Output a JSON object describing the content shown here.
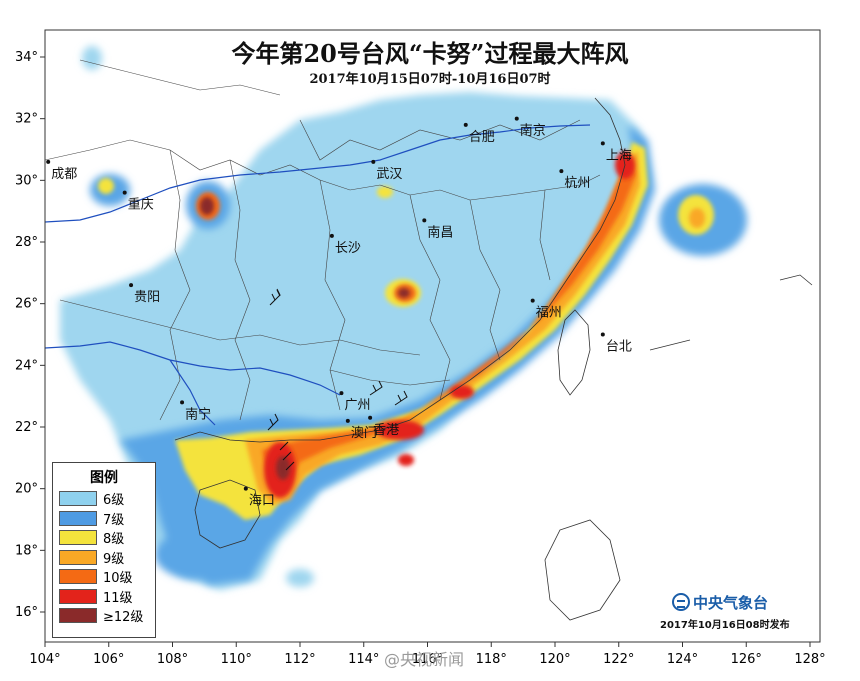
{
  "title": "今年第20号台风“卡努”过程最大阵风",
  "subtitle": "2017年10月15日07时-10月16日07时",
  "x_ticks": [
    "104°",
    "106°",
    "108°",
    "110°",
    "112°",
    "114°",
    "116°",
    "118°",
    "120°",
    "122°",
    "124°",
    "126°",
    "128°"
  ],
  "y_ticks": [
    "34°",
    "32°",
    "30°",
    "28°",
    "26°",
    "24°",
    "22°",
    "20°",
    "18°",
    "16°"
  ],
  "cities": [
    {
      "name": "合肥",
      "lon": 117.2,
      "lat": 31.8
    },
    {
      "name": "南京",
      "lon": 118.8,
      "lat": 32.0
    },
    {
      "name": "成都",
      "lon": 104.1,
      "lat": 30.6
    },
    {
      "name": "上海",
      "lon": 121.5,
      "lat": 31.2
    },
    {
      "name": "武汉",
      "lon": 114.3,
      "lat": 30.6
    },
    {
      "name": "重庆",
      "lon": 106.5,
      "lat": 29.6
    },
    {
      "name": "杭州",
      "lon": 120.2,
      "lat": 30.3
    },
    {
      "name": "南昌",
      "lon": 115.9,
      "lat": 28.7
    },
    {
      "name": "长沙",
      "lon": 113.0,
      "lat": 28.2
    },
    {
      "name": "贵阳",
      "lon": 106.7,
      "lat": 26.6
    },
    {
      "name": "福州",
      "lon": 119.3,
      "lat": 26.1
    },
    {
      "name": "台北",
      "lon": 121.5,
      "lat": 25.0
    },
    {
      "name": "广州",
      "lon": 113.3,
      "lat": 23.1
    },
    {
      "name": "南宁",
      "lon": 108.3,
      "lat": 22.8
    },
    {
      "name": "澳门",
      "lon": 113.5,
      "lat": 22.2
    },
    {
      "name": "香港",
      "lon": 114.2,
      "lat": 22.3
    },
    {
      "name": "海口",
      "lon": 110.3,
      "lat": 20.0
    }
  ],
  "legend": {
    "title": "图例",
    "items": [
      {
        "label": "6级",
        "color": "#8fd1ee"
      },
      {
        "label": "7级",
        "color": "#4f9be3"
      },
      {
        "label": "8级",
        "color": "#f4e33c"
      },
      {
        "label": "9级",
        "color": "#f9a825"
      },
      {
        "label": "10级",
        "color": "#f46a14"
      },
      {
        "label": "11级",
        "color": "#e3231b"
      },
      {
        "label": "≥12级",
        "color": "#8a2a2a"
      }
    ]
  },
  "credit": "中央气象台",
  "issue_time": "2017年10月16日08时发布",
  "watermark": "@央视新闻"
}
